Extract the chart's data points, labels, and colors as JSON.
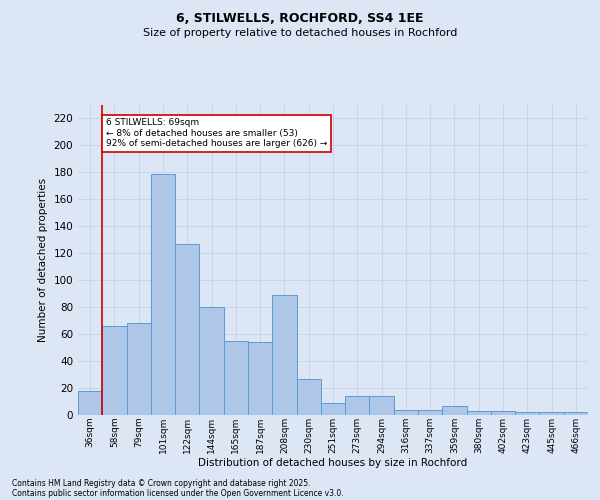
{
  "title1": "6, STILWELLS, ROCHFORD, SS4 1EE",
  "title2": "Size of property relative to detached houses in Rochford",
  "xlabel": "Distribution of detached houses by size in Rochford",
  "ylabel": "Number of detached properties",
  "categories": [
    "36sqm",
    "58sqm",
    "79sqm",
    "101sqm",
    "122sqm",
    "144sqm",
    "165sqm",
    "187sqm",
    "208sqm",
    "230sqm",
    "251sqm",
    "273sqm",
    "294sqm",
    "316sqm",
    "337sqm",
    "359sqm",
    "380sqm",
    "402sqm",
    "423sqm",
    "445sqm",
    "466sqm"
  ],
  "values": [
    18,
    66,
    68,
    179,
    127,
    80,
    55,
    54,
    89,
    27,
    9,
    14,
    14,
    4,
    4,
    7,
    3,
    3,
    2,
    2,
    2
  ],
  "bar_color": "#aec6e8",
  "bar_edge_color": "#5b9bd5",
  "grid_color": "#c8d4e8",
  "background_color": "#dce6f5",
  "vline_x_index": 1,
  "annotation_text": "6 STILWELLS: 69sqm\n← 8% of detached houses are smaller (53)\n92% of semi-detached houses are larger (626) →",
  "annotation_box_color": "#ffffff",
  "annotation_box_edge": "#cc0000",
  "vline_color": "#cc0000",
  "footer1": "Contains HM Land Registry data © Crown copyright and database right 2025.",
  "footer2": "Contains public sector information licensed under the Open Government Licence v3.0.",
  "ylim": [
    0,
    230
  ],
  "yticks": [
    0,
    20,
    40,
    60,
    80,
    100,
    120,
    140,
    160,
    180,
    200,
    220
  ]
}
